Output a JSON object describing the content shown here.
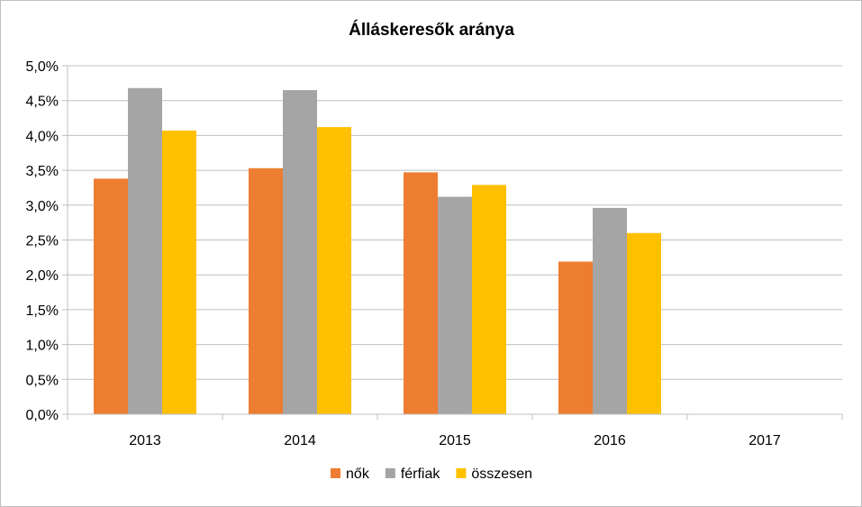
{
  "chart_data": {
    "type": "bar",
    "title": "Álláskeresők aránya",
    "xlabel": "",
    "ylabel": "",
    "categories": [
      "2013",
      "2014",
      "2015",
      "2016",
      "2017"
    ],
    "series": [
      {
        "name": "nők",
        "color": "#ED7D31",
        "values": [
          3.38,
          3.53,
          3.47,
          2.19,
          null
        ]
      },
      {
        "name": "férfiak",
        "color": "#A5A5A5",
        "values": [
          4.68,
          4.65,
          3.12,
          2.96,
          null
        ]
      },
      {
        "name": "összesen",
        "color": "#FFC000",
        "values": [
          4.07,
          4.12,
          3.29,
          2.6,
          null
        ]
      }
    ],
    "ylim": [
      0,
      5
    ],
    "yticks": [
      "0,0%",
      "0,5%",
      "1,0%",
      "1,5%",
      "2,0%",
      "2,5%",
      "3,0%",
      "3,5%",
      "4,0%",
      "4,5%",
      "5,0%"
    ],
    "grid": true,
    "legend_position": "bottom"
  }
}
